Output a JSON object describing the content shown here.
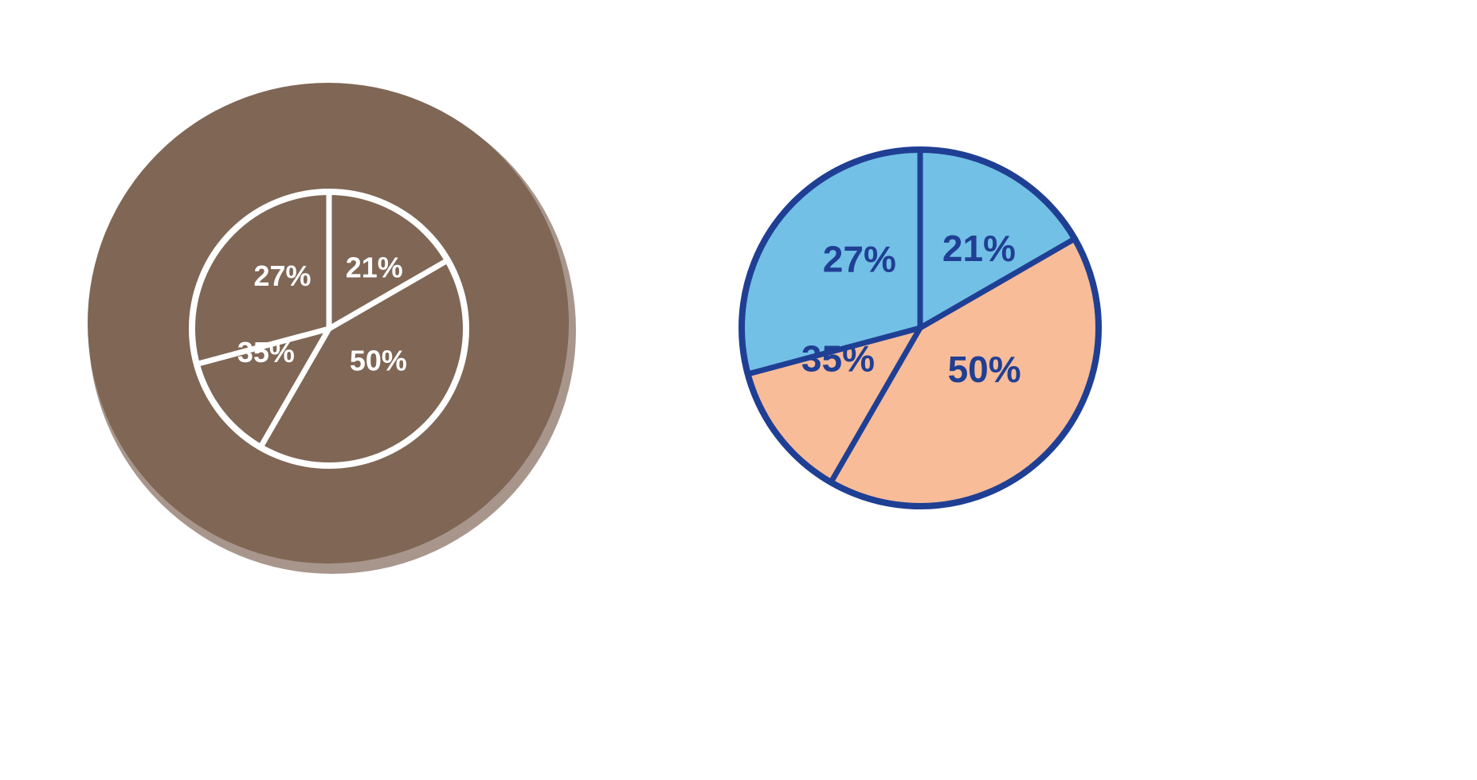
{
  "chart_data": [
    {
      "type": "pie",
      "style": "outline-icon",
      "labels": [
        "21%",
        "50%",
        "35%",
        "27%"
      ],
      "values": [
        21,
        50,
        35,
        27
      ],
      "colors": {
        "background_disc": "#7f6655",
        "disc_rim": "#a8968c",
        "outline": "#ffffff",
        "text": "#ffffff"
      }
    },
    {
      "type": "pie",
      "style": "filled",
      "labels": [
        "21%",
        "50%",
        "35%",
        "27%"
      ],
      "values": [
        21,
        50,
        35,
        27
      ],
      "colors": {
        "slices": [
          "#72c0e6",
          "#f8bc98",
          "#f8bc98",
          "#72c0e6"
        ],
        "outline": "#1f3f94",
        "text": "#1f3f94",
        "accent_digit": "#f2c200"
      }
    }
  ]
}
